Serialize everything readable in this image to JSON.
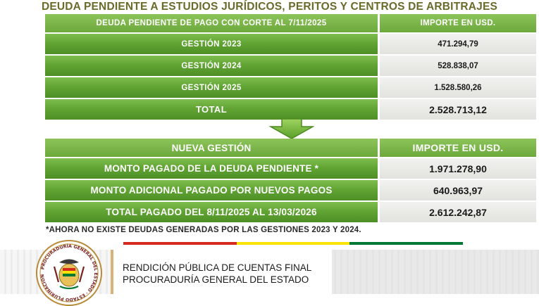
{
  "title": "DEUDA PENDIENTE A ESTUDIOS JURÍDICOS, PERITOS Y CENTROS DE ARBITRAJES",
  "table1": {
    "header": {
      "label": "DEUDA PENDIENTE DE PAGO CON CORTE AL 7/11/2025",
      "amount": "IMPORTE EN USD."
    },
    "rows": [
      {
        "label": "GESTIÓN 2023",
        "amount": "471.294,79"
      },
      {
        "label": "GESTIÓN 2024",
        "amount": "528.838,07"
      },
      {
        "label": "GESTIÓN 2025",
        "amount": "1.528.580,26"
      },
      {
        "label": "TOTAL",
        "amount": "2.528.713,12"
      }
    ]
  },
  "table2": {
    "header": {
      "label": "NUEVA GESTIÓN",
      "amount": "IMPORTE EN USD."
    },
    "rows": [
      {
        "label": "MONTO PAGADO DE LA DEUDA PENDIENTE *",
        "amount": "1.971.278,90"
      },
      {
        "label": "MONTO ADICIONAL PAGADO POR NUEVOS PAGOS",
        "amount": "640.963,97"
      },
      {
        "label": "TOTAL PAGADO DEL 8/11/2025 AL 13/03/2026",
        "amount": "2.612.242,87"
      }
    ]
  },
  "footnote": "*AHORA NO EXISTE DEUDAS GENERADAS POR LAS GESTIONES 2023 Y 2024.",
  "footer": {
    "line1": "RENDICIÓN PÚBLICA DE CUENTAS FINAL",
    "line2": "PROCURADURÍA GENERAL DEL ESTADO",
    "seal_text": "PROCURADURÍA GENERAL DEL ESTADO · ESTADO PLURINACIONAL DE BOLIVIA"
  },
  "colors": {
    "green": "#62a535",
    "title": "#6a6a2a",
    "flag_red": "#d52b1e",
    "flag_yellow": "#f9e300",
    "flag_green": "#007934"
  }
}
